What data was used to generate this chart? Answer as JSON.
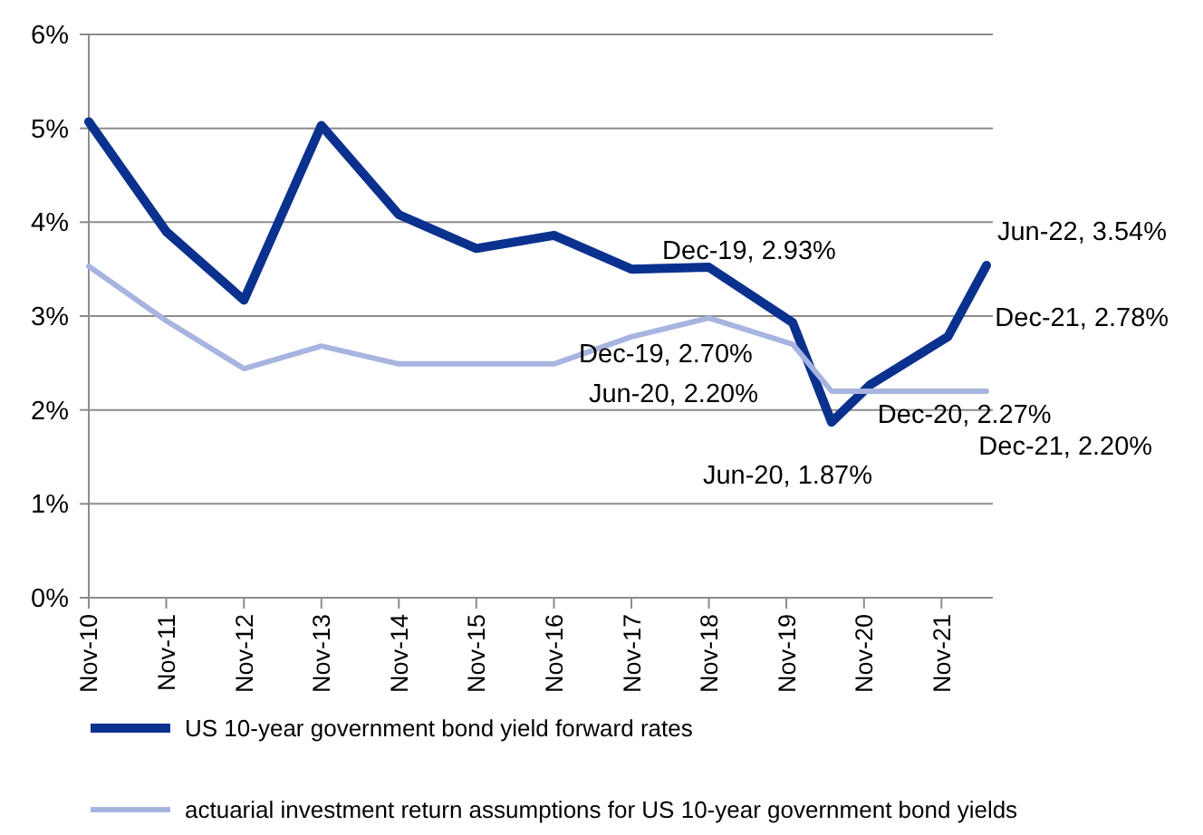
{
  "chart_data": {
    "type": "line",
    "x": [
      "2010-11",
      "2011-11",
      "2012-11",
      "2013-11",
      "2014-11",
      "2015-11",
      "2016-11",
      "2017-11",
      "2018-11",
      "2019-12",
      "2020-06",
      "2020-12",
      "2021-12",
      "2022-06"
    ],
    "series": [
      {
        "name": "US 10-year government bond yield forward rates",
        "color": "#0b318f",
        "values": [
          5.07,
          3.9,
          3.17,
          5.03,
          4.08,
          3.72,
          3.86,
          3.5,
          3.52,
          2.93,
          1.87,
          2.27,
          2.78,
          3.54
        ]
      },
      {
        "name": "actuarial investment return assumptions for US 10-year government bond yields",
        "color": "#a8b4e0",
        "values": [
          3.53,
          2.95,
          2.44,
          2.68,
          2.49,
          2.49,
          2.49,
          2.78,
          2.98,
          2.7,
          2.2,
          2.2,
          2.2,
          2.2
        ]
      }
    ],
    "xlim": [
      "2010-11",
      "2022-07"
    ],
    "xticks": [
      {
        "value": "2010-11",
        "label": "Nov-10"
      },
      {
        "value": "2011-11",
        "label": "Nov-11"
      },
      {
        "value": "2012-11",
        "label": "Nov-12"
      },
      {
        "value": "2013-11",
        "label": "Nov-13"
      },
      {
        "value": "2014-11",
        "label": "Nov-14"
      },
      {
        "value": "2015-11",
        "label": "Nov-15"
      },
      {
        "value": "2016-11",
        "label": "Nov-16"
      },
      {
        "value": "2017-11",
        "label": "Nov-17"
      },
      {
        "value": "2018-11",
        "label": "Nov-18"
      },
      {
        "value": "2019-11",
        "label": "Nov-19"
      },
      {
        "value": "2020-11",
        "label": "Nov-20"
      },
      {
        "value": "2021-11",
        "label": "Nov-21"
      }
    ],
    "ylim": [
      0,
      6
    ],
    "yticks": [
      {
        "value": 0,
        "label": "0%"
      },
      {
        "value": 1,
        "label": "1%"
      },
      {
        "value": 2,
        "label": "2%"
      },
      {
        "value": 3,
        "label": "3%"
      },
      {
        "value": 4,
        "label": "4%"
      },
      {
        "value": 5,
        "label": "5%"
      },
      {
        "value": 6,
        "label": "6%"
      }
    ],
    "grid": "y",
    "legend": "bottom",
    "marker": "none",
    "line_style": "solid",
    "annotations": [
      {
        "text": "Dec-19, 2.93%",
        "x": "2019-12",
        "y": 2.93
      },
      {
        "text": "Jun-20, 1.87%",
        "x": "2020-06",
        "y": 1.87
      },
      {
        "text": "Dec-20, 2.27%",
        "x": "2020-12",
        "y": 2.27
      },
      {
        "text": "Dec-21, 2.78%",
        "x": "2021-12",
        "y": 2.78
      },
      {
        "text": "Jun-22, 3.54%",
        "x": "2022-06",
        "y": 3.54
      },
      {
        "text": "Dec-19, 2.70%",
        "x": "2019-12",
        "y": 2.7
      },
      {
        "text": "Jun-20, 2.20%",
        "x": "2020-06",
        "y": 2.2
      },
      {
        "text": "Dec-21, 2.20%",
        "x": "2021-12",
        "y": 2.2
      }
    ]
  }
}
